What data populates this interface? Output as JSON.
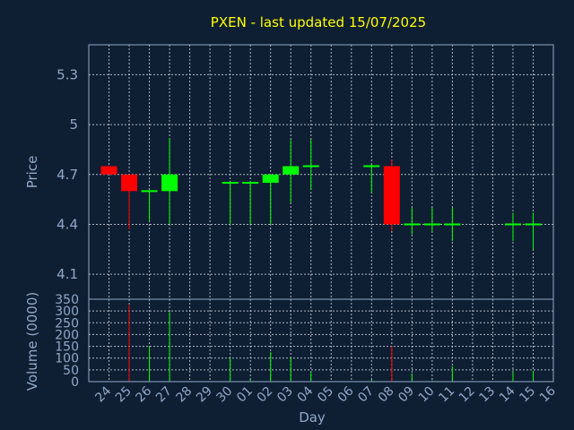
{
  "chart_data": [
    {
      "type": "candlestick",
      "title": "PXEN - last updated 15/07/2025",
      "ylabel": "Price",
      "ylim": [
        3.95,
        5.48
      ],
      "yticks": [
        "4.1",
        "4.4",
        "4.7",
        "5",
        "5.3"
      ],
      "colors": {
        "up": "#00ff00",
        "down": "#ff0000",
        "background": "#0f1f33",
        "grid": "#c8d0dc",
        "text": "#8fa8c8",
        "title": "#ffff00"
      },
      "candles": [
        {
          "day": "24",
          "open": 4.75,
          "high": 4.75,
          "low": 4.7,
          "close": 4.7
        },
        {
          "day": "25",
          "open": 4.7,
          "high": 4.7,
          "low": 4.37,
          "close": 4.6
        },
        {
          "day": "26",
          "open": 4.59,
          "high": 4.6,
          "low": 4.42,
          "close": 4.6
        },
        {
          "day": "27",
          "open": 4.6,
          "high": 4.92,
          "low": 4.4,
          "close": 4.7
        },
        {
          "day": "30",
          "open": 4.65,
          "high": 4.66,
          "low": 4.4,
          "close": 4.65
        },
        {
          "day": "01",
          "open": 4.65,
          "high": 4.66,
          "low": 4.4,
          "close": 4.65
        },
        {
          "day": "02",
          "open": 4.65,
          "high": 4.7,
          "low": 4.4,
          "close": 4.7
        },
        {
          "day": "03",
          "open": 4.7,
          "high": 4.91,
          "low": 4.53,
          "close": 4.75
        },
        {
          "day": "04",
          "open": 4.75,
          "high": 4.91,
          "low": 4.61,
          "close": 4.75
        },
        {
          "day": "07",
          "open": 4.75,
          "high": 4.76,
          "low": 4.59,
          "close": 4.75
        },
        {
          "day": "08",
          "open": 4.75,
          "high": 4.79,
          "low": 4.36,
          "close": 4.4
        },
        {
          "day": "09",
          "open": 4.4,
          "high": 4.5,
          "low": 4.34,
          "close": 4.4
        },
        {
          "day": "10",
          "open": 4.4,
          "high": 4.5,
          "low": 4.36,
          "close": 4.4
        },
        {
          "day": "11",
          "open": 4.4,
          "high": 4.5,
          "low": 4.3,
          "close": 4.4
        },
        {
          "day": "14",
          "open": 4.4,
          "high": 4.47,
          "low": 4.3,
          "close": 4.4
        },
        {
          "day": "15",
          "open": 4.4,
          "high": 4.47,
          "low": 4.25,
          "close": 4.4
        }
      ]
    },
    {
      "type": "bar",
      "ylabel": "Volume (0000)",
      "xlabel": "Day",
      "ylim": [
        0,
        350
      ],
      "yticks": [
        "0",
        "50",
        "100",
        "150",
        "200",
        "250",
        "300",
        "350"
      ],
      "categories": [
        "24",
        "25",
        "26",
        "27",
        "28",
        "29",
        "30",
        "01",
        "02",
        "03",
        "04",
        "05",
        "06",
        "07",
        "08",
        "09",
        "10",
        "11",
        "12",
        "13",
        "14",
        "15",
        "16"
      ],
      "volumes": [
        {
          "day": "25",
          "value": 325,
          "direction": "down"
        },
        {
          "day": "26",
          "value": 150,
          "direction": "up"
        },
        {
          "day": "27",
          "value": 295,
          "direction": "up"
        },
        {
          "day": "30",
          "value": 100,
          "direction": "up"
        },
        {
          "day": "01",
          "value": 10,
          "direction": "up"
        },
        {
          "day": "02",
          "value": 125,
          "direction": "up"
        },
        {
          "day": "03",
          "value": 103,
          "direction": "up"
        },
        {
          "day": "04",
          "value": 40,
          "direction": "up"
        },
        {
          "day": "07",
          "value": 8,
          "direction": "up"
        },
        {
          "day": "08",
          "value": 150,
          "direction": "down"
        },
        {
          "day": "09",
          "value": 35,
          "direction": "up"
        },
        {
          "day": "10",
          "value": 5,
          "direction": "up"
        },
        {
          "day": "11",
          "value": 65,
          "direction": "up"
        },
        {
          "day": "14",
          "value": 40,
          "direction": "up"
        },
        {
          "day": "15",
          "value": 45,
          "direction": "up"
        }
      ]
    }
  ]
}
